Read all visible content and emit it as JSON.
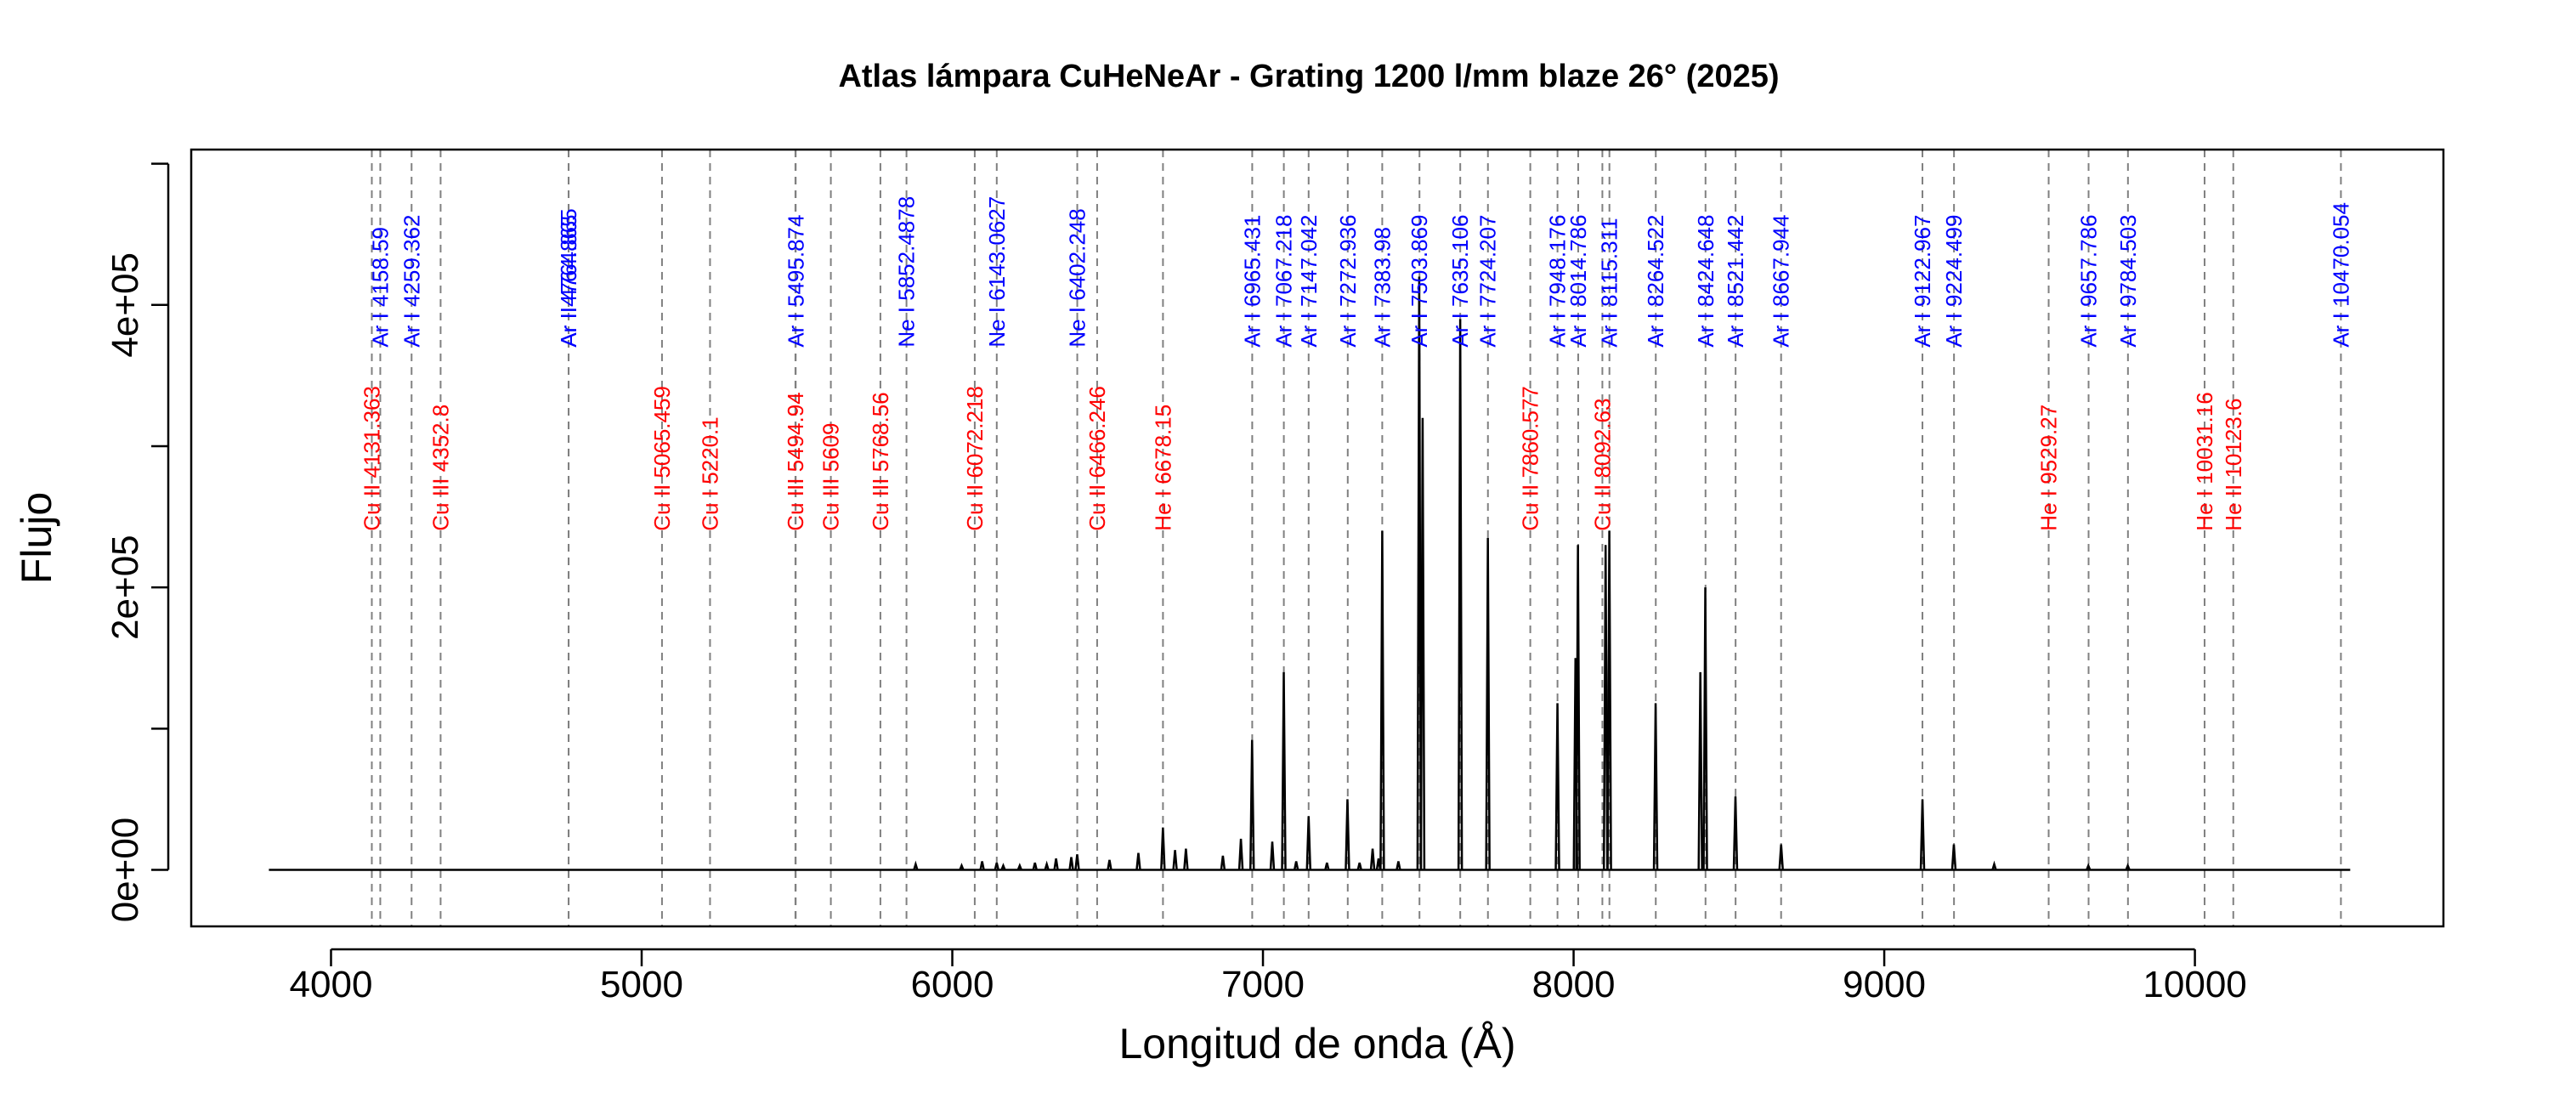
{
  "chart_data": {
    "type": "line",
    "title": "Atlas lámpara CuHeNeAr - Grating 1200 l/mm blaze 26° (2025)",
    "xlabel": "Longitud de onda (Å)",
    "ylabel": "Flujo",
    "xlim": [
      3550,
      10800
    ],
    "ylim": [
      -40000,
      510000
    ],
    "x_ticks": [
      4000,
      5000,
      6000,
      7000,
      8000,
      9000,
      10000
    ],
    "x_tick_labels": [
      "4000",
      "5000",
      "6000",
      "7000",
      "8000",
      "9000",
      "10000"
    ],
    "y_ticks": [
      0,
      100000,
      200000,
      300000,
      400000,
      500000
    ],
    "y_tick_labels": [
      "0e+00",
      "",
      "2e+05",
      "",
      "4e+05",
      ""
    ],
    "grid": false,
    "legend": "none",
    "spectrum": {
      "name": "",
      "color": "#000000",
      "x_range": [
        3800,
        10500
      ],
      "baseline": 0,
      "peaks": [
        {
          "x": 5882,
          "y": 4000
        },
        {
          "x": 6030,
          "y": 3000
        },
        {
          "x": 6096,
          "y": 6000
        },
        {
          "x": 6143,
          "y": 5000
        },
        {
          "x": 6164,
          "y": 3000
        },
        {
          "x": 6217,
          "y": 3000
        },
        {
          "x": 6266,
          "y": 5000
        },
        {
          "x": 6304,
          "y": 4000
        },
        {
          "x": 6334,
          "y": 8000
        },
        {
          "x": 6383,
          "y": 9000
        },
        {
          "x": 6402,
          "y": 11000
        },
        {
          "x": 6506,
          "y": 7000
        },
        {
          "x": 6599,
          "y": 12000
        },
        {
          "x": 6678,
          "y": 30000
        },
        {
          "x": 6717,
          "y": 14000
        },
        {
          "x": 6752,
          "y": 15000
        },
        {
          "x": 6871,
          "y": 10000
        },
        {
          "x": 6929,
          "y": 22000
        },
        {
          "x": 6965,
          "y": 92000
        },
        {
          "x": 7030,
          "y": 20000
        },
        {
          "x": 7067,
          "y": 140000
        },
        {
          "x": 7107,
          "y": 6000
        },
        {
          "x": 7147,
          "y": 38000
        },
        {
          "x": 7206,
          "y": 5000
        },
        {
          "x": 7272,
          "y": 50000
        },
        {
          "x": 7311,
          "y": 5000
        },
        {
          "x": 7353,
          "y": 15000
        },
        {
          "x": 7372,
          "y": 8000
        },
        {
          "x": 7384,
          "y": 240000
        },
        {
          "x": 7436,
          "y": 6000
        },
        {
          "x": 7503,
          "y": 420000
        },
        {
          "x": 7514,
          "y": 320000
        },
        {
          "x": 7635,
          "y": 390000
        },
        {
          "x": 7724,
          "y": 235000
        },
        {
          "x": 7948,
          "y": 118000
        },
        {
          "x": 8006,
          "y": 150000
        },
        {
          "x": 8014,
          "y": 230000
        },
        {
          "x": 8103,
          "y": 230000
        },
        {
          "x": 8115,
          "y": 240000
        },
        {
          "x": 8264,
          "y": 118000
        },
        {
          "x": 8408,
          "y": 140000
        },
        {
          "x": 8424,
          "y": 200000
        },
        {
          "x": 8521,
          "y": 52000
        },
        {
          "x": 8668,
          "y": 18000
        },
        {
          "x": 9123,
          "y": 50000
        },
        {
          "x": 9224,
          "y": 18000
        },
        {
          "x": 9354,
          "y": 4000
        },
        {
          "x": 9657,
          "y": 3000
        },
        {
          "x": 9784,
          "y": 3000
        }
      ]
    },
    "series": [
      {
        "name": "Ar I",
        "color": "#0000ff",
        "label_y": 370000,
        "lines": [
          {
            "x": 4158.59,
            "label": "4158.59"
          },
          {
            "x": 4259.362,
            "label": "4259.362"
          },
          {
            "x": 4764.865,
            "label": "4764.865"
          },
          {
            "x": 5495.874,
            "label": "5495.874"
          },
          {
            "x": 6965.431,
            "label": "6965.431"
          },
          {
            "x": 7067.218,
            "label": "7067.218"
          },
          {
            "x": 7147.042,
            "label": "7147.042"
          },
          {
            "x": 7272.936,
            "label": "7272.936"
          },
          {
            "x": 7383.98,
            "label": "7383.98"
          },
          {
            "x": 7503.869,
            "label": "7503.869"
          },
          {
            "x": 7635.106,
            "label": "7635.106"
          },
          {
            "x": 7724.207,
            "label": "7724.207"
          },
          {
            "x": 7948.176,
            "label": "7948.176"
          },
          {
            "x": 8014.786,
            "label": "8014.786"
          },
          {
            "x": 8115.311,
            "label": "8115.311"
          },
          {
            "x": 8264.522,
            "label": "8264.522"
          },
          {
            "x": 8424.648,
            "label": "8424.648"
          },
          {
            "x": 8521.442,
            "label": "8521.442"
          },
          {
            "x": 8667.944,
            "label": "8667.944"
          },
          {
            "x": 9122.967,
            "label": "9122.967"
          },
          {
            "x": 9224.499,
            "label": "9224.499"
          },
          {
            "x": 9657.786,
            "label": "9657.786"
          },
          {
            "x": 9784.503,
            "label": "9784.503"
          },
          {
            "x": 10470.054,
            "label": "10470.054"
          }
        ]
      },
      {
        "name": "Ar II",
        "color": "#0000ff",
        "label_y": 370000,
        "lines": [
          {
            "x": 4764.865,
            "label": "4764.865"
          }
        ]
      },
      {
        "name": "Ne I",
        "color": "#0000ff",
        "label_y": 370000,
        "lines": [
          {
            "x": 5852.4878,
            "label": "5852.4878"
          },
          {
            "x": 6143.0627,
            "label": "6143.0627"
          },
          {
            "x": 6402.248,
            "label": "6402.248"
          }
        ]
      },
      {
        "name": "Cu I",
        "color": "#ff0000",
        "label_y": 240000,
        "lines": [
          {
            "x": 5220.1,
            "label": "5220.1"
          }
        ]
      },
      {
        "name": "Cu II",
        "color": "#ff0000",
        "label_y": 240000,
        "lines": [
          {
            "x": 4131.363,
            "label": "4131.363"
          },
          {
            "x": 5065.459,
            "label": "5065.459"
          },
          {
            "x": 6072.218,
            "label": "6072.218"
          },
          {
            "x": 6466.246,
            "label": "6466.246"
          },
          {
            "x": 7860.577,
            "label": "7860.577"
          },
          {
            "x": 8092.63,
            "label": "8092.63"
          }
        ]
      },
      {
        "name": "Cu III",
        "color": "#ff0000",
        "label_y": 240000,
        "lines": [
          {
            "x": 4352.8,
            "label": "4352.8"
          },
          {
            "x": 5494.94,
            "label": "5494.94"
          },
          {
            "x": 5609,
            "label": "5609"
          },
          {
            "x": 5768.56,
            "label": "5768.56"
          }
        ]
      },
      {
        "name": "He I",
        "color": "#ff0000",
        "label_y": 240000,
        "lines": [
          {
            "x": 6678.15,
            "label": "6678.15"
          },
          {
            "x": 9529.27,
            "label": "9529.27"
          },
          {
            "x": 10031.16,
            "label": "10031.16"
          }
        ]
      },
      {
        "name": "He II",
        "color": "#ff0000",
        "label_y": 240000,
        "lines": [
          {
            "x": 10123.6,
            "label": "10123.6"
          }
        ]
      }
    ]
  }
}
